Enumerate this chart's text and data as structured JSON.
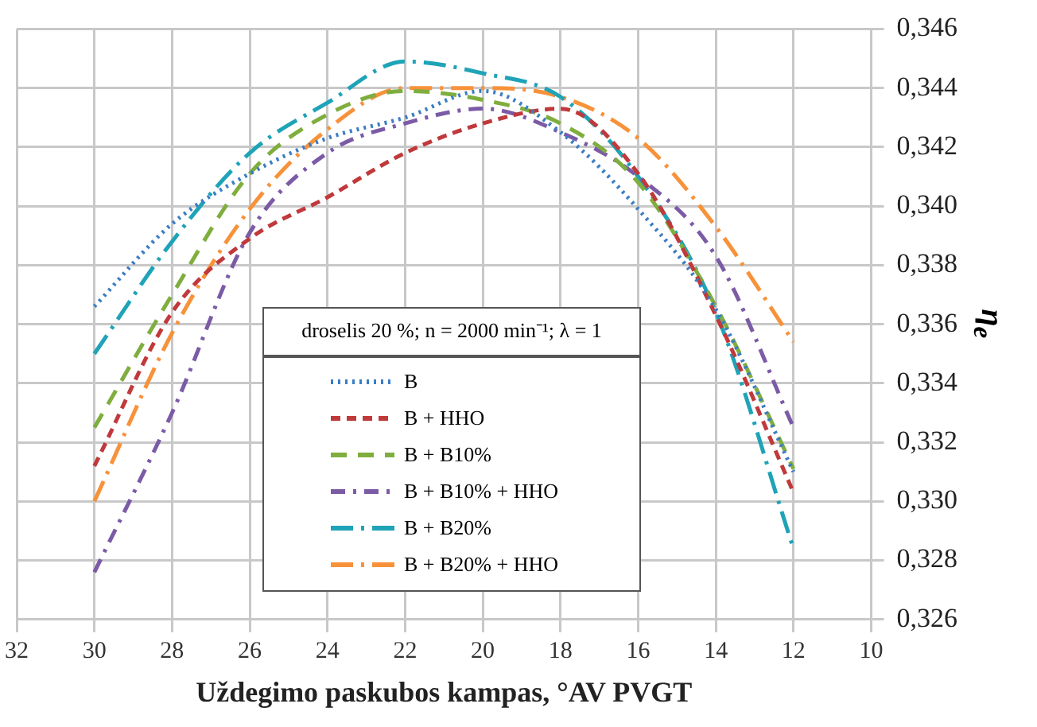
{
  "chart_data": {
    "type": "line",
    "xlabel": "Uždegimo paskubos kampas, °AV PVGT",
    "ylabel": "η$_{e}$",
    "legend_title": "droselis 20 %; n = 2000 min⁻¹; λ = 1",
    "x": [
      30,
      28,
      26,
      24,
      22,
      20,
      18,
      16,
      14,
      12
    ],
    "xlim": [
      32,
      10
    ],
    "xticks": [
      32,
      30,
      28,
      26,
      24,
      22,
      20,
      18,
      16,
      14,
      12,
      10
    ],
    "ylim": [
      0.326,
      0.346
    ],
    "yticks": [
      {
        "value": 0.326,
        "label": "0,326"
      },
      {
        "value": 0.328,
        "label": "0,328"
      },
      {
        "value": 0.33,
        "label": "0,330"
      },
      {
        "value": 0.332,
        "label": "0,332"
      },
      {
        "value": 0.334,
        "label": "0,334"
      },
      {
        "value": 0.336,
        "label": "0,336"
      },
      {
        "value": 0.338,
        "label": "0,338"
      },
      {
        "value": 0.34,
        "label": "0,340"
      },
      {
        "value": 0.342,
        "label": "0,342"
      },
      {
        "value": 0.344,
        "label": "0,344"
      },
      {
        "value": 0.346,
        "label": "0,346"
      }
    ],
    "grid": true,
    "legend": "bottom",
    "marker": "none",
    "series": [
      {
        "name": "B",
        "color": "#3b7dc4",
        "line_style": "dotted",
        "values": [
          0.3366,
          0.3394,
          0.3411,
          0.3423,
          0.343,
          0.3439,
          0.3425,
          0.3399,
          0.3365,
          0.331
        ]
      },
      {
        "name": "B + HHO",
        "color": "#c0393b",
        "line_style": "dashed",
        "values": [
          0.3312,
          0.3364,
          0.3389,
          0.3403,
          0.3418,
          0.3428,
          0.3433,
          0.3411,
          0.3363,
          0.3303
        ]
      },
      {
        "name": "B + B10%",
        "color": "#7fae3e",
        "line_style": "dashed",
        "values": [
          0.3325,
          0.337,
          0.3411,
          0.3431,
          0.3439,
          0.3436,
          0.3428,
          0.3408,
          0.3366,
          0.3311
        ]
      },
      {
        "name": "B + B10% + HHO",
        "color": "#7c5ba6",
        "line_style": "dashed",
        "values": [
          0.3276,
          0.333,
          0.3391,
          0.3418,
          0.3428,
          0.3433,
          0.3425,
          0.341,
          0.3383,
          0.3325
        ]
      },
      {
        "name": "B + B20%",
        "color": "#1fa3b7",
        "line_style": "dashed",
        "values": [
          0.335,
          0.3388,
          0.3418,
          0.3435,
          0.3449,
          0.3445,
          0.3437,
          0.341,
          0.3364,
          0.3284
        ]
      },
      {
        "name": "B + B20% + HHO",
        "color": "#f7923a",
        "line_style": "dashed",
        "values": [
          0.33,
          0.3357,
          0.3399,
          0.3426,
          0.344,
          0.344,
          0.3437,
          0.3423,
          0.3393,
          0.3354
        ]
      }
    ]
  }
}
